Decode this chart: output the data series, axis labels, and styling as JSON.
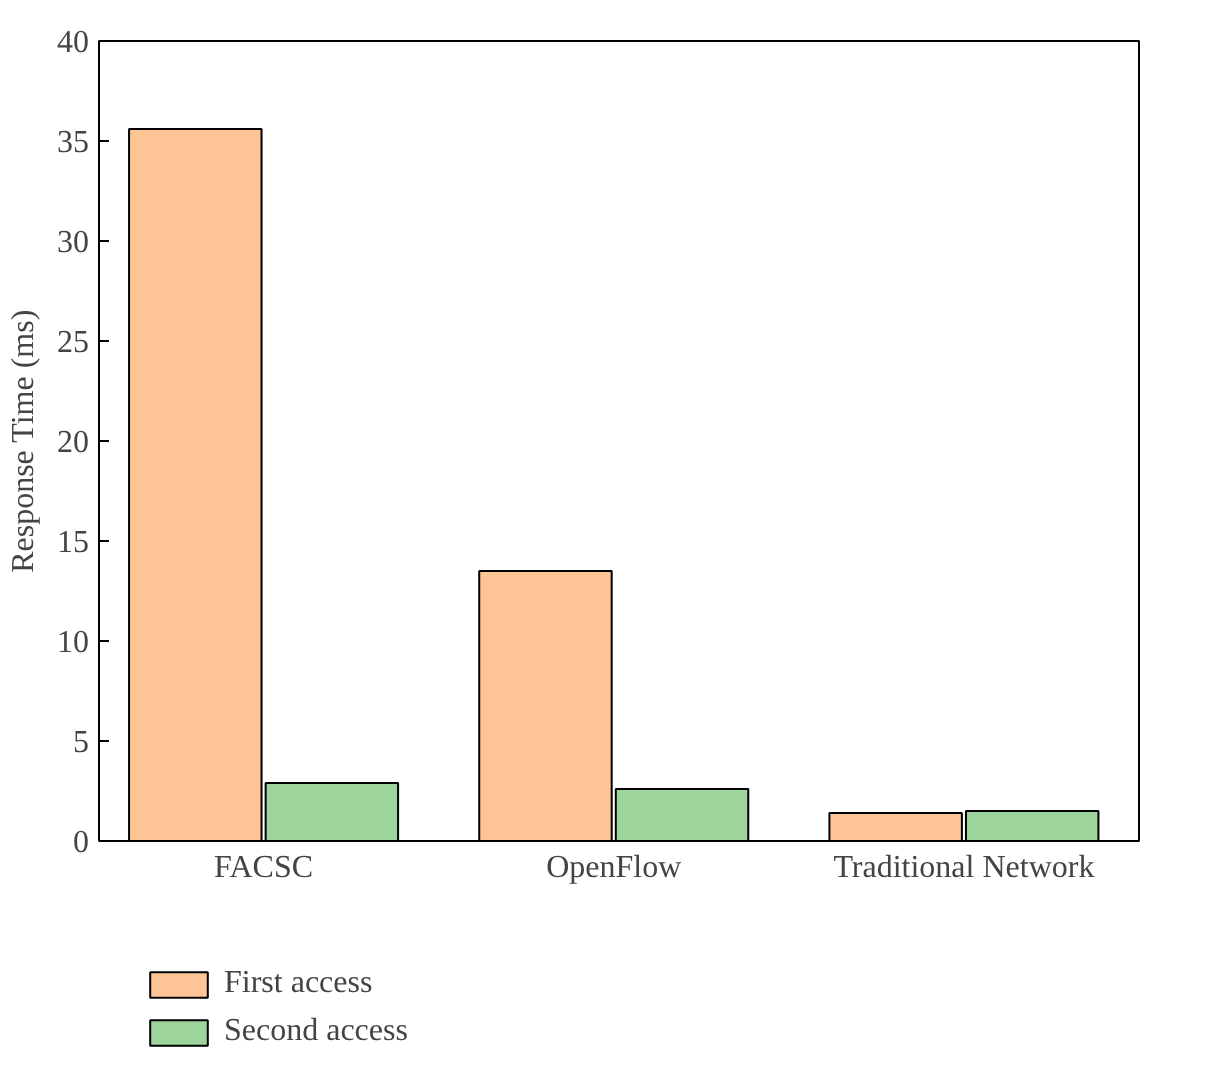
{
  "chart_data": {
    "type": "bar",
    "ylabel": "Response Time (ms)",
    "categories": [
      "FACSC",
      "OpenFlow",
      "Traditional Network"
    ],
    "series": [
      {
        "name": "First access",
        "color": "#fdc496",
        "values": [
          35.6,
          13.5,
          1.4
        ]
      },
      {
        "name": "Second access",
        "color": "#9dd49b",
        "values": [
          2.9,
          2.6,
          1.5
        ]
      }
    ],
    "ylim": [
      0,
      40
    ],
    "yticks": [
      0,
      5,
      10,
      15,
      20,
      25,
      30,
      35,
      40
    ],
    "grid": false,
    "legend": "bottom"
  }
}
